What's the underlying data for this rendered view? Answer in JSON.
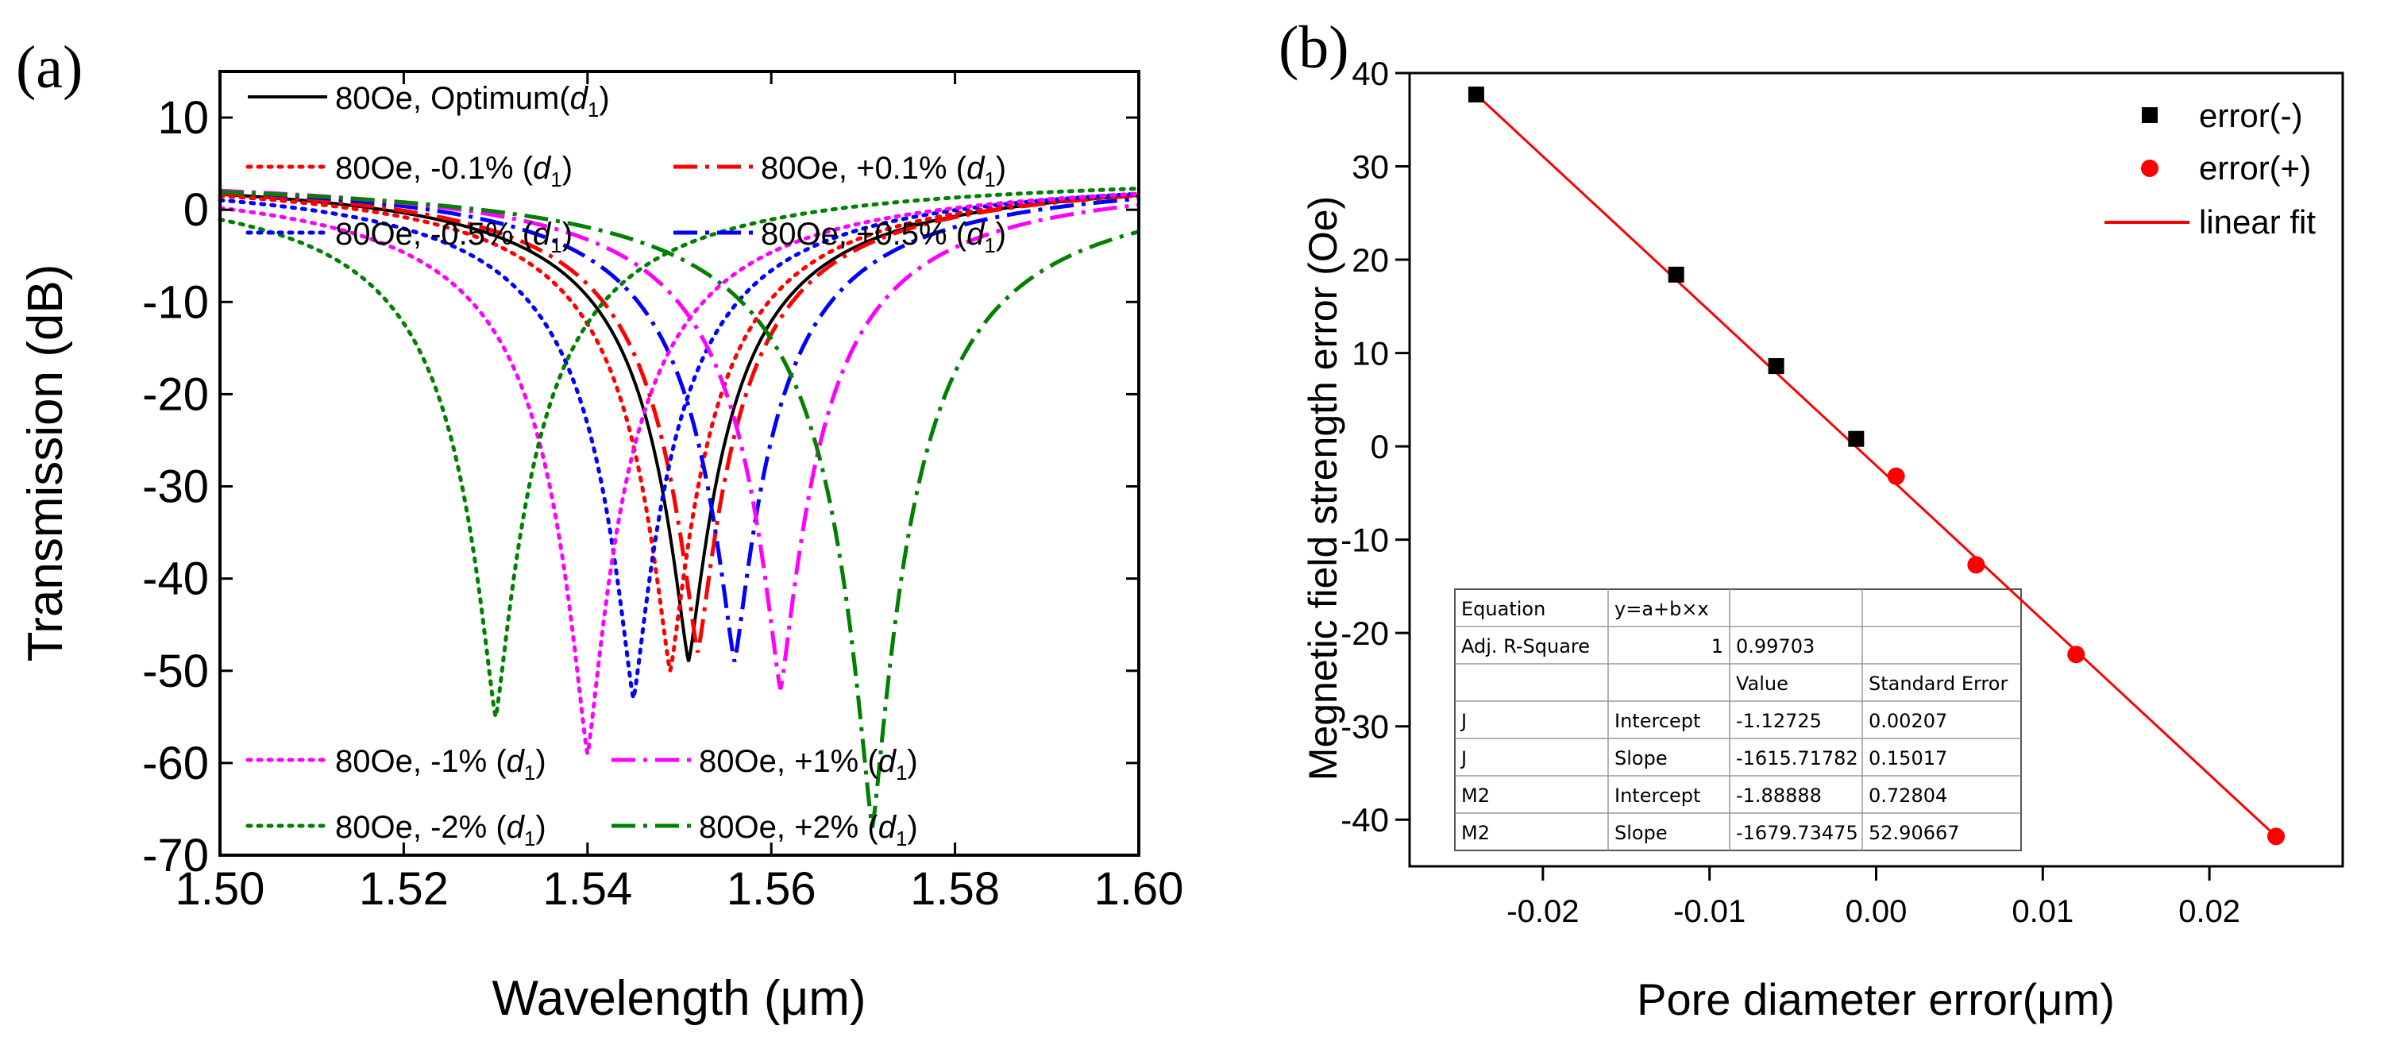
{
  "panels": {
    "a_label": "(a)",
    "b_label": "(b)"
  },
  "chart_data": [
    {
      "type": "line",
      "title": "",
      "xlabel": "Wavelength (μm)",
      "ylabel": "Transmission (dB)",
      "xlim": [
        1.5,
        1.6
      ],
      "ylim": [
        -70,
        15
      ],
      "xticks": [
        1.5,
        1.52,
        1.54,
        1.56,
        1.58,
        1.6
      ],
      "xtick_labels": [
        "1.50",
        "1.52",
        "1.54",
        "1.56",
        "1.58",
        "1.60"
      ],
      "yticks": [
        10,
        0,
        -10,
        -20,
        -30,
        -40,
        -50,
        -60,
        -70
      ],
      "ytick_labels": [
        "10",
        "0",
        "-10",
        "-20",
        "-30",
        "-40",
        "-50",
        "-60",
        "-70"
      ],
      "legend_subscript": "1",
      "series": [
        {
          "id": "opt",
          "name": "80Oe, Optimum",
          "var": "d",
          "paren": "(",
          "color": "#000000",
          "style": "solid",
          "center": 1.551,
          "depth": -49
        },
        {
          "id": "m01",
          "name": "80Oe, -0.1% ",
          "var": "d",
          "paren": "(",
          "color": "#ff0000",
          "style": "dot",
          "center": 1.549,
          "depth": -50
        },
        {
          "id": "p01",
          "name": "80Oe, +0.1% ",
          "var": "d",
          "paren": "(",
          "color": "#ff0000",
          "style": "dashdot",
          "center": 1.552,
          "depth": -48
        },
        {
          "id": "m05",
          "name": "80Oe, -0.5% ",
          "var": "d",
          "paren": "(",
          "color": "#0000ff",
          "style": "dot",
          "center": 1.545,
          "depth": -53
        },
        {
          "id": "p05",
          "name": "80Oe, +0.5% ",
          "var": "d",
          "paren": "(",
          "color": "#0000ff",
          "style": "dashdot",
          "center": 1.556,
          "depth": -49
        },
        {
          "id": "m1",
          "name": "80Oe, -1% ",
          "var": "d",
          "paren": "(",
          "color": "#ff00ff",
          "style": "dot",
          "center": 1.54,
          "depth": -59
        },
        {
          "id": "p1",
          "name": "80Oe, +1% ",
          "var": "d",
          "paren": "(",
          "color": "#ff00ff",
          "style": "dashdot",
          "center": 1.561,
          "depth": -52
        },
        {
          "id": "m2",
          "name": "80Oe, -2% ",
          "var": "d",
          "paren": "(",
          "color": "#008000",
          "style": "dot",
          "center": 1.53,
          "depth": -55
        },
        {
          "id": "p2",
          "name": "80Oe, +2% ",
          "var": "d",
          "paren": "(",
          "color": "#008000",
          "style": "dashdot",
          "center": 1.571,
          "depth": -67
        }
      ]
    },
    {
      "type": "scatter",
      "title": "",
      "xlabel": "Pore diameter error(μm)",
      "ylabel": "Megnetic field strength error  (Oe)",
      "xlim": [
        -0.028,
        0.028
      ],
      "ylim": [
        -45,
        40
      ],
      "xticks": [
        -0.02,
        -0.01,
        0.0,
        0.01,
        0.02
      ],
      "xtick_labels": [
        "-0.02",
        "-0.01",
        "0.00",
        "0.01",
        "0.02"
      ],
      "yticks": [
        40,
        30,
        20,
        10,
        0,
        -10,
        -20,
        -30,
        -40
      ],
      "ytick_labels": [
        "40",
        "30",
        "20",
        "10",
        "0",
        "-10",
        "-20",
        "-30",
        "-40"
      ],
      "series": [
        {
          "name": "error(-)",
          "color": "#000000",
          "marker": "square",
          "x": [
            -0.024,
            -0.012,
            -0.006,
            -0.0012
          ],
          "y": [
            37.7,
            18.4,
            8.6,
            0.8
          ]
        },
        {
          "name": "error(+)",
          "color": "#ff0000",
          "marker": "circle",
          "x": [
            0.0012,
            0.006,
            0.012,
            0.024
          ],
          "y": [
            -3.2,
            -12.7,
            -22.3,
            -41.8
          ]
        },
        {
          "name": "linear fit",
          "color": "#ff0000",
          "marker": "line",
          "x": [
            -0.024,
            0.024
          ],
          "y": [
            37.7,
            -41.8
          ]
        }
      ],
      "fit_table": {
        "rows": [
          [
            "Equation",
            "y=a+b×x",
            "",
            ""
          ],
          [
            "Adj. R-Square",
            "1",
            "0.99703",
            ""
          ],
          [
            "",
            "",
            "Value",
            "Standard Error"
          ],
          [
            "J",
            "Intercept",
            "-1.12725",
            "0.00207"
          ],
          [
            "J",
            "Slope",
            "-1615.71782",
            "0.15017"
          ],
          [
            "M2",
            "Intercept",
            "-1.88888",
            "0.72804"
          ],
          [
            "M2",
            "Slope",
            "-1679.73475",
            "52.90667"
          ]
        ]
      }
    }
  ]
}
